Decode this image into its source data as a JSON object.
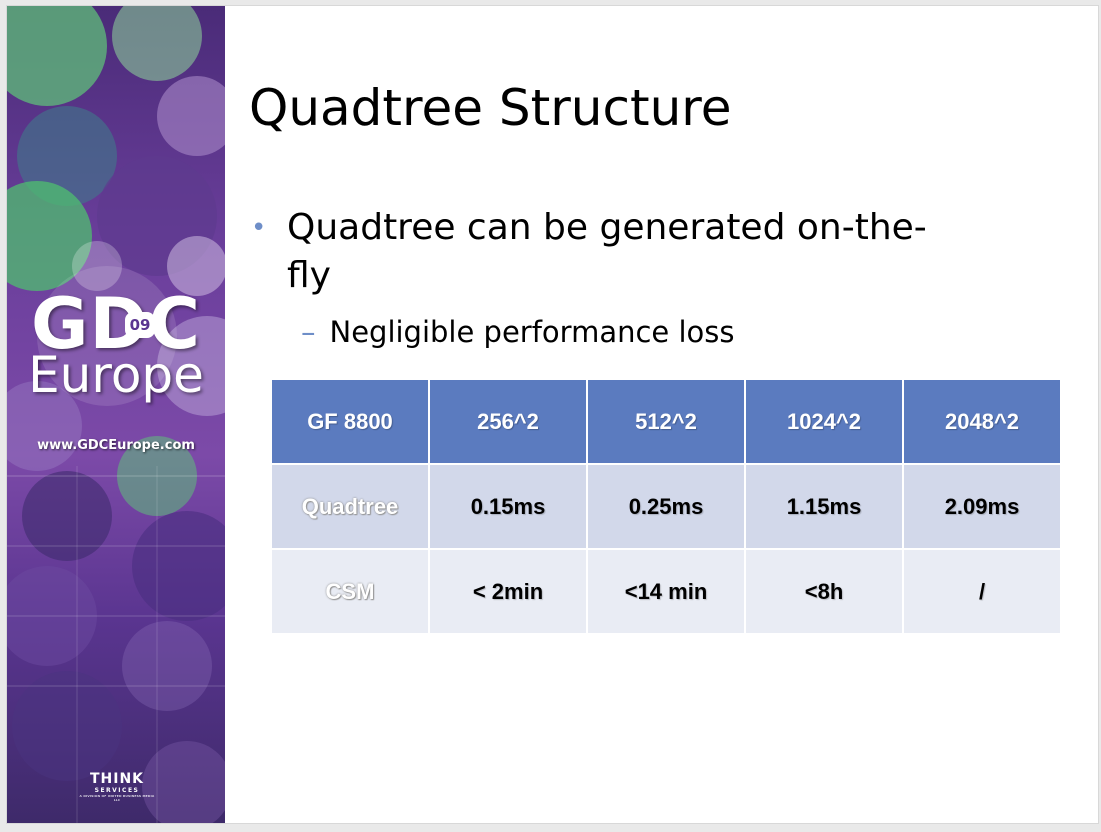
{
  "slide": {
    "title": "Quadtree Structure",
    "bullets": [
      {
        "mark": "•",
        "text": "Quadtree can be generated on-the-fly",
        "sub": {
          "mark": "–",
          "text": "Negligible performance loss"
        }
      }
    ]
  },
  "banner": {
    "logo_main": "GDC",
    "logo_badge": "09",
    "logo_sub": "Europe",
    "url": "www.GDCEurope.com",
    "sponsor_main": "THINK",
    "sponsor_sub": "SERVICES",
    "sponsor_tiny": "A DIVISION OF UNITED BUSINESS MEDIA LLC"
  },
  "table": {
    "header": [
      "GF 8800",
      "256^2",
      "512^2",
      "1024^2",
      "2048^2"
    ],
    "rows": [
      {
        "label": "Quadtree",
        "values": [
          "0.15ms",
          "0.25ms",
          "1.15ms",
          "2.09ms"
        ]
      },
      {
        "label": "CSM",
        "values": [
          "< 2min",
          "<14 min",
          "<8h",
          "/"
        ]
      }
    ]
  },
  "colors": {
    "header_bg": "#5b7bbf",
    "row_a_bg": "#d2d8ea",
    "row_b_bg": "#e9ecf4",
    "bullet_accent": "#6e8ec8",
    "banner_purple": "#6b3f9c",
    "banner_green": "#5fbf7a"
  }
}
